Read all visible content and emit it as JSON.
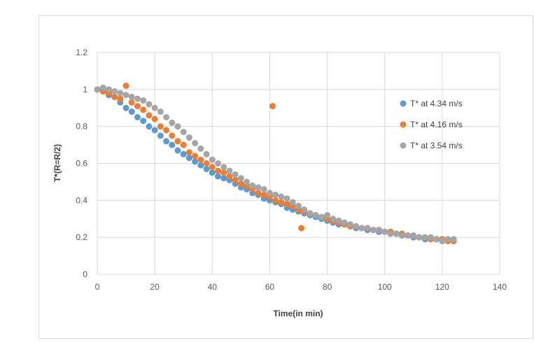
{
  "chart_data": {
    "type": "scatter",
    "title": "",
    "xlabel": "Time(in min)",
    "ylabel": "T*(R=R/2)",
    "xlim": [
      0,
      140
    ],
    "ylim": [
      0,
      1.2
    ],
    "x_ticks": [
      0,
      20,
      40,
      60,
      80,
      100,
      120,
      140
    ],
    "y_ticks": [
      0,
      0.2,
      0.4,
      0.6,
      0.8,
      1,
      1.2
    ],
    "grid": "vertical and horizontal",
    "legend_position": "right",
    "series": [
      {
        "name": "T* at 4.34 m/s",
        "color": "#5b9bd5",
        "points": [
          [
            0,
            1.0
          ],
          [
            2,
            0.99
          ],
          [
            4,
            0.97
          ],
          [
            6,
            0.96
          ],
          [
            8,
            0.93
          ],
          [
            10,
            0.9
          ],
          [
            12,
            0.88
          ],
          [
            14,
            0.85
          ],
          [
            16,
            0.83
          ],
          [
            18,
            0.8
          ],
          [
            20,
            0.78
          ],
          [
            22,
            0.75
          ],
          [
            24,
            0.72
          ],
          [
            26,
            0.7
          ],
          [
            28,
            0.67
          ],
          [
            30,
            0.65
          ],
          [
            32,
            0.63
          ],
          [
            34,
            0.61
          ],
          [
            36,
            0.59
          ],
          [
            38,
            0.57
          ],
          [
            40,
            0.55
          ],
          [
            42,
            0.53
          ],
          [
            44,
            0.52
          ],
          [
            46,
            0.51
          ],
          [
            48,
            0.49
          ],
          [
            50,
            0.47
          ],
          [
            52,
            0.46
          ],
          [
            54,
            0.44
          ],
          [
            56,
            0.43
          ],
          [
            58,
            0.41
          ],
          [
            60,
            0.4
          ],
          [
            62,
            0.39
          ],
          [
            64,
            0.38
          ],
          [
            66,
            0.36
          ],
          [
            68,
            0.35
          ],
          [
            70,
            0.34
          ],
          [
            72,
            0.33
          ],
          [
            74,
            0.32
          ],
          [
            76,
            0.31
          ],
          [
            78,
            0.3
          ],
          [
            80,
            0.29
          ],
          [
            82,
            0.28
          ],
          [
            84,
            0.27
          ],
          [
            86,
            0.27
          ],
          [
            88,
            0.26
          ],
          [
            90,
            0.25
          ],
          [
            92,
            0.25
          ],
          [
            94,
            0.24
          ],
          [
            96,
            0.24
          ],
          [
            98,
            0.23
          ],
          [
            100,
            0.23
          ],
          [
            102,
            0.22
          ],
          [
            104,
            0.22
          ],
          [
            106,
            0.21
          ],
          [
            108,
            0.21
          ],
          [
            110,
            0.2
          ],
          [
            112,
            0.2
          ],
          [
            114,
            0.19
          ],
          [
            116,
            0.19
          ],
          [
            118,
            0.19
          ],
          [
            120,
            0.18
          ],
          [
            122,
            0.18
          ],
          [
            124,
            0.18
          ]
        ]
      },
      {
        "name": "T* at 4.16 m/s",
        "color": "#ed7d31",
        "points": [
          [
            0,
            1.0
          ],
          [
            2,
            0.99
          ],
          [
            4,
            0.98
          ],
          [
            6,
            0.96
          ],
          [
            8,
            0.95
          ],
          [
            10,
            1.02
          ],
          [
            12,
            0.93
          ],
          [
            14,
            0.91
          ],
          [
            16,
            0.89
          ],
          [
            18,
            0.86
          ],
          [
            20,
            0.84
          ],
          [
            22,
            0.8
          ],
          [
            24,
            0.78
          ],
          [
            26,
            0.75
          ],
          [
            28,
            0.72
          ],
          [
            30,
            0.7
          ],
          [
            32,
            0.66
          ],
          [
            34,
            0.64
          ],
          [
            36,
            0.62
          ],
          [
            38,
            0.6
          ],
          [
            40,
            0.58
          ],
          [
            42,
            0.56
          ],
          [
            44,
            0.55
          ],
          [
            46,
            0.53
          ],
          [
            48,
            0.51
          ],
          [
            50,
            0.49
          ],
          [
            52,
            0.48
          ],
          [
            54,
            0.46
          ],
          [
            56,
            0.44
          ],
          [
            58,
            0.43
          ],
          [
            60,
            0.42
          ],
          [
            61,
            0.91
          ],
          [
            62,
            0.4
          ],
          [
            64,
            0.39
          ],
          [
            66,
            0.38
          ],
          [
            68,
            0.37
          ],
          [
            70,
            0.35
          ],
          [
            71,
            0.25
          ],
          [
            72,
            0.34
          ],
          [
            74,
            0.33
          ],
          [
            76,
            0.32
          ],
          [
            78,
            0.31
          ],
          [
            80,
            0.3
          ],
          [
            82,
            0.29
          ],
          [
            84,
            0.28
          ],
          [
            86,
            0.27
          ],
          [
            88,
            0.26
          ],
          [
            90,
            0.26
          ],
          [
            92,
            0.25
          ],
          [
            94,
            0.25
          ],
          [
            96,
            0.24
          ],
          [
            98,
            0.24
          ],
          [
            100,
            0.23
          ],
          [
            102,
            0.23
          ],
          [
            104,
            0.22
          ],
          [
            106,
            0.22
          ],
          [
            108,
            0.21
          ],
          [
            110,
            0.21
          ],
          [
            112,
            0.2
          ],
          [
            114,
            0.2
          ],
          [
            116,
            0.19
          ],
          [
            118,
            0.19
          ],
          [
            120,
            0.19
          ],
          [
            122,
            0.18
          ],
          [
            124,
            0.18
          ]
        ]
      },
      {
        "name": "T* at 3.54 m/s",
        "color": "#a5a5a5",
        "points": [
          [
            0,
            1.0
          ],
          [
            2,
            1.01
          ],
          [
            4,
            1.0
          ],
          [
            6,
            0.99
          ],
          [
            8,
            0.98
          ],
          [
            10,
            0.97
          ],
          [
            12,
            0.96
          ],
          [
            14,
            0.95
          ],
          [
            16,
            0.94
          ],
          [
            18,
            0.92
          ],
          [
            20,
            0.9
          ],
          [
            22,
            0.88
          ],
          [
            24,
            0.85
          ],
          [
            26,
            0.82
          ],
          [
            28,
            0.8
          ],
          [
            30,
            0.77
          ],
          [
            32,
            0.74
          ],
          [
            34,
            0.71
          ],
          [
            36,
            0.68
          ],
          [
            38,
            0.65
          ],
          [
            40,
            0.62
          ],
          [
            42,
            0.6
          ],
          [
            44,
            0.58
          ],
          [
            46,
            0.56
          ],
          [
            48,
            0.54
          ],
          [
            50,
            0.52
          ],
          [
            52,
            0.5
          ],
          [
            54,
            0.48
          ],
          [
            56,
            0.47
          ],
          [
            58,
            0.46
          ],
          [
            60,
            0.44
          ],
          [
            62,
            0.43
          ],
          [
            64,
            0.42
          ],
          [
            66,
            0.41
          ],
          [
            68,
            0.39
          ],
          [
            70,
            0.37
          ],
          [
            72,
            0.35
          ],
          [
            74,
            0.33
          ],
          [
            76,
            0.32
          ],
          [
            78,
            0.31
          ],
          [
            80,
            0.32
          ],
          [
            82,
            0.3
          ],
          [
            84,
            0.29
          ],
          [
            86,
            0.28
          ],
          [
            88,
            0.27
          ],
          [
            90,
            0.26
          ],
          [
            92,
            0.25
          ],
          [
            94,
            0.25
          ],
          [
            96,
            0.24
          ],
          [
            98,
            0.24
          ],
          [
            100,
            0.23
          ],
          [
            102,
            0.22
          ],
          [
            104,
            0.22
          ],
          [
            106,
            0.21
          ],
          [
            108,
            0.21
          ],
          [
            110,
            0.21
          ],
          [
            112,
            0.2
          ],
          [
            114,
            0.2
          ],
          [
            116,
            0.2
          ],
          [
            118,
            0.19
          ],
          [
            120,
            0.18
          ],
          [
            122,
            0.19
          ],
          [
            124,
            0.19
          ]
        ]
      }
    ]
  }
}
